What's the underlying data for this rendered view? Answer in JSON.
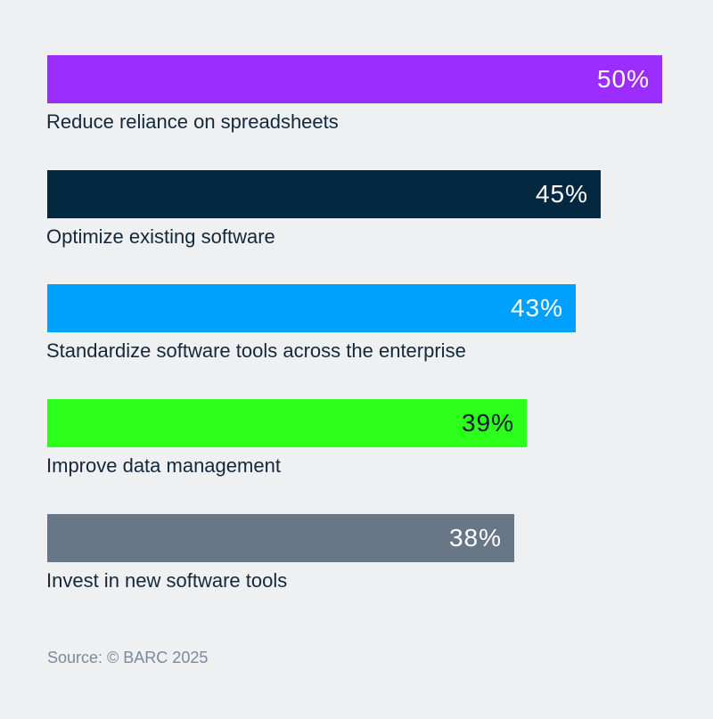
{
  "chart_data": {
    "type": "bar",
    "orientation": "horizontal",
    "categories": [
      "Reduce reliance on spreadsheets",
      "Optimize existing software",
      "Standardize software tools across the enterprise",
      "Improve data management",
      "Invest in new software tools"
    ],
    "values": [
      50,
      45,
      43,
      39,
      38
    ],
    "value_labels": [
      "50%",
      "45%",
      "43%",
      "39%",
      "38%"
    ],
    "unit": "%",
    "colors": [
      "#9b2eff",
      "#03283f",
      "#00a0ff",
      "#2cff1c",
      "#687787"
    ],
    "value_label_colors": [
      "#ffffff",
      "#ffffff",
      "#ffffff",
      "#0d1b27",
      "#ffffff"
    ],
    "xlim": [
      0,
      50
    ],
    "grid": false,
    "legend": "none"
  },
  "source": "Source: © BARC 2025"
}
